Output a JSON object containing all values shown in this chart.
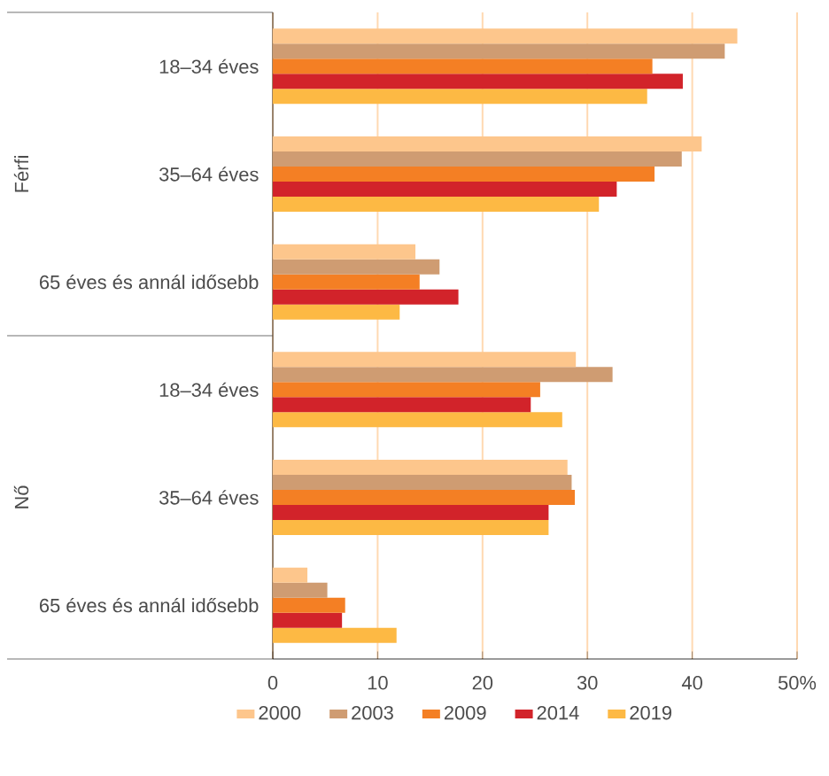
{
  "chart_data": {
    "type": "bar",
    "orientation": "horizontal",
    "categories": [
      "18–34 éves",
      "35–64 éves",
      "65 éves és annál idősebb",
      "18–34 éves",
      "35–64 éves",
      "65 éves és annál idősebb"
    ],
    "series": [
      {
        "name": "2000",
        "color": "#fdc68c",
        "values": [
          44.3,
          40.9,
          13.6,
          28.9,
          28.1,
          3.3
        ]
      },
      {
        "name": "2003",
        "color": "#cf9c72",
        "values": [
          43.1,
          39.0,
          15.9,
          32.4,
          28.5,
          5.2
        ]
      },
      {
        "name": "2009",
        "color": "#f47f24",
        "values": [
          36.2,
          36.4,
          14.0,
          25.5,
          28.8,
          6.9
        ]
      },
      {
        "name": "2014",
        "color": "#d2232a",
        "values": [
          39.1,
          32.8,
          17.7,
          24.6,
          26.3,
          6.6
        ]
      },
      {
        "name": "2019",
        "color": "#fdb944",
        "values": [
          35.7,
          31.1,
          12.1,
          27.6,
          26.3,
          11.8
        ]
      }
    ],
    "xlim": [
      0,
      50
    ],
    "xticks": [
      0,
      10,
      20,
      30,
      40,
      {
        "value": 50,
        "label": "50%"
      }
    ],
    "annotations": [
      "Férfi",
      "Nő"
    ],
    "grid": "x",
    "legend": "bottom"
  }
}
